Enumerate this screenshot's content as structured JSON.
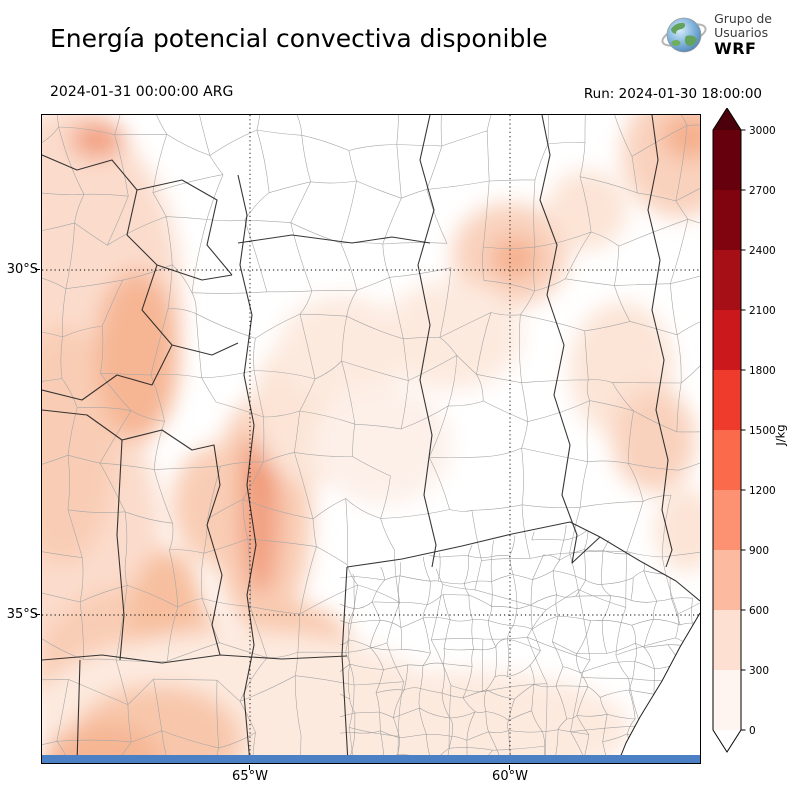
{
  "header": {
    "title": "Energía potencial convectiva disponible",
    "logo": {
      "line1": "Grupo de",
      "line2": "Usuarios",
      "line3": "WRF"
    }
  },
  "subheader": {
    "valid_time": "2024-01-31 00:00:00 ARG",
    "run": "Run: 2024-01-30 18:00:00"
  },
  "map": {
    "lat_ticks": [
      {
        "label": "30°S"
      },
      {
        "label": "35°S"
      }
    ],
    "lon_ticks": [
      {
        "label": "65°W"
      },
      {
        "label": "60°W"
      }
    ],
    "water_color": "#4b80c4"
  },
  "colorbar": {
    "unit": "J/kg",
    "ticks": [
      "3000",
      "2700",
      "2400",
      "2100",
      "1800",
      "1500",
      "1200",
      "900",
      "600",
      "300",
      "0"
    ],
    "colors_bottom_to_top": [
      "#fff5f0",
      "#fee0d2",
      "#fcbba1",
      "#fc9272",
      "#fb6a4a",
      "#ef3b2c",
      "#cb181d",
      "#a50f15",
      "#7f0410",
      "#67000d"
    ],
    "under_color": "#ffffff",
    "over_color": "#4c0009"
  }
}
